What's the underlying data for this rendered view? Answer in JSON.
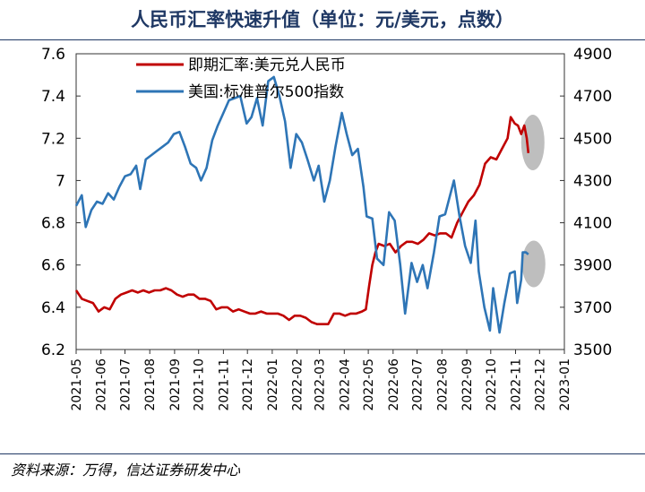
{
  "title": "人民币汇率快速升值（单位：元/美元，点数）",
  "source": "资料来源：万得，信达证券研发中心",
  "chart_data": {
    "type": "line",
    "title": "人民币汇率快速升值（单位：元/美元，点数）",
    "x_ticks": [
      "2021-05",
      "2021-06",
      "2021-07",
      "2021-08",
      "2021-09",
      "2021-10",
      "2021-11",
      "2021-12",
      "2022-01",
      "2022-02",
      "2022-03",
      "2022-04",
      "2022-05",
      "2022-06",
      "2022-07",
      "2022-08",
      "2022-09",
      "2022-10",
      "2022-11",
      "2022-12",
      "2023-01"
    ],
    "xlim": [
      "2021-05-01",
      "2023-01-01"
    ],
    "y_left": {
      "ylim": [
        6.2,
        7.6
      ],
      "ticks": [
        "6.2",
        "6.4",
        "6.6",
        "6.8",
        "7",
        "7.2",
        "7.4",
        "7.6"
      ]
    },
    "y_right": {
      "ylim": [
        3500,
        4900
      ],
      "ticks": [
        "3500",
        "3700",
        "3900",
        "4100",
        "4300",
        "4500",
        "4700",
        "4900"
      ]
    },
    "legend_position": "top",
    "grid": false,
    "annotations": [
      "grey ellipse highlighting recent USD/CNY decline",
      "grey ellipse highlighting recent S&P 500 rebound"
    ],
    "series": [
      {
        "name": "即期汇率:美元兑人民币",
        "axis": "left",
        "color": "#c00000",
        "points": [
          [
            "2021-05-01",
            6.48
          ],
          [
            "2021-05-08",
            6.44
          ],
          [
            "2021-05-15",
            6.43
          ],
          [
            "2021-05-22",
            6.42
          ],
          [
            "2021-05-29",
            6.38
          ],
          [
            "2021-06-05",
            6.4
          ],
          [
            "2021-06-12",
            6.39
          ],
          [
            "2021-06-19",
            6.44
          ],
          [
            "2021-06-26",
            6.46
          ],
          [
            "2021-07-03",
            6.47
          ],
          [
            "2021-07-10",
            6.48
          ],
          [
            "2021-07-17",
            6.47
          ],
          [
            "2021-07-24",
            6.48
          ],
          [
            "2021-07-31",
            6.47
          ],
          [
            "2021-08-07",
            6.48
          ],
          [
            "2021-08-14",
            6.48
          ],
          [
            "2021-08-21",
            6.49
          ],
          [
            "2021-08-28",
            6.48
          ],
          [
            "2021-09-04",
            6.46
          ],
          [
            "2021-09-11",
            6.45
          ],
          [
            "2021-09-18",
            6.46
          ],
          [
            "2021-09-25",
            6.46
          ],
          [
            "2021-10-02",
            6.44
          ],
          [
            "2021-10-09",
            6.44
          ],
          [
            "2021-10-16",
            6.43
          ],
          [
            "2021-10-23",
            6.39
          ],
          [
            "2021-10-30",
            6.4
          ],
          [
            "2021-11-06",
            6.4
          ],
          [
            "2021-11-13",
            6.38
          ],
          [
            "2021-11-20",
            6.39
          ],
          [
            "2021-11-27",
            6.38
          ],
          [
            "2021-12-04",
            6.37
          ],
          [
            "2021-12-11",
            6.37
          ],
          [
            "2021-12-18",
            6.38
          ],
          [
            "2021-12-25",
            6.37
          ],
          [
            "2022-01-01",
            6.37
          ],
          [
            "2022-01-08",
            6.37
          ],
          [
            "2022-01-15",
            6.36
          ],
          [
            "2022-01-22",
            6.34
          ],
          [
            "2022-01-29",
            6.36
          ],
          [
            "2022-02-05",
            6.36
          ],
          [
            "2022-02-12",
            6.35
          ],
          [
            "2022-02-19",
            6.33
          ],
          [
            "2022-02-26",
            6.32
          ],
          [
            "2022-03-05",
            6.32
          ],
          [
            "2022-03-12",
            6.32
          ],
          [
            "2022-03-19",
            6.37
          ],
          [
            "2022-03-26",
            6.37
          ],
          [
            "2022-04-02",
            6.36
          ],
          [
            "2022-04-09",
            6.37
          ],
          [
            "2022-04-16",
            6.37
          ],
          [
            "2022-04-23",
            6.38
          ],
          [
            "2022-04-28",
            6.39
          ],
          [
            "2022-05-02",
            6.5
          ],
          [
            "2022-05-06",
            6.6
          ],
          [
            "2022-05-10",
            6.66
          ],
          [
            "2022-05-14",
            6.7
          ],
          [
            "2022-05-21",
            6.69
          ],
          [
            "2022-05-28",
            6.7
          ],
          [
            "2022-06-04",
            6.66
          ],
          [
            "2022-06-11",
            6.69
          ],
          [
            "2022-06-18",
            6.71
          ],
          [
            "2022-06-25",
            6.71
          ],
          [
            "2022-07-02",
            6.7
          ],
          [
            "2022-07-09",
            6.72
          ],
          [
            "2022-07-16",
            6.75
          ],
          [
            "2022-07-23",
            6.74
          ],
          [
            "2022-07-30",
            6.75
          ],
          [
            "2022-08-06",
            6.75
          ],
          [
            "2022-08-13",
            6.73
          ],
          [
            "2022-08-20",
            6.8
          ],
          [
            "2022-08-27",
            6.85
          ],
          [
            "2022-09-03",
            6.9
          ],
          [
            "2022-09-10",
            6.93
          ],
          [
            "2022-09-17",
            6.98
          ],
          [
            "2022-09-24",
            7.08
          ],
          [
            "2022-10-01",
            7.11
          ],
          [
            "2022-10-08",
            7.1
          ],
          [
            "2022-10-15",
            7.15
          ],
          [
            "2022-10-22",
            7.2
          ],
          [
            "2022-10-26",
            7.3
          ],
          [
            "2022-10-31",
            7.27
          ],
          [
            "2022-11-04",
            7.26
          ],
          [
            "2022-11-08",
            7.22
          ],
          [
            "2022-11-12",
            7.26
          ],
          [
            "2022-11-15",
            7.2
          ],
          [
            "2022-11-17",
            7.13
          ]
        ]
      },
      {
        "name": "美国:标准普尔500指数",
        "axis": "right",
        "color": "#2e75b6",
        "points": [
          [
            "2021-05-01",
            4180
          ],
          [
            "2021-05-08",
            4230
          ],
          [
            "2021-05-13",
            4080
          ],
          [
            "2021-05-20",
            4160
          ],
          [
            "2021-05-27",
            4200
          ],
          [
            "2021-06-03",
            4190
          ],
          [
            "2021-06-10",
            4240
          ],
          [
            "2021-06-17",
            4210
          ],
          [
            "2021-06-24",
            4270
          ],
          [
            "2021-07-01",
            4320
          ],
          [
            "2021-07-08",
            4330
          ],
          [
            "2021-07-15",
            4370
          ],
          [
            "2021-07-20",
            4260
          ],
          [
            "2021-07-27",
            4400
          ],
          [
            "2021-08-03",
            4420
          ],
          [
            "2021-08-10",
            4440
          ],
          [
            "2021-08-17",
            4460
          ],
          [
            "2021-08-24",
            4480
          ],
          [
            "2021-08-31",
            4520
          ],
          [
            "2021-09-07",
            4530
          ],
          [
            "2021-09-14",
            4460
          ],
          [
            "2021-09-21",
            4380
          ],
          [
            "2021-09-28",
            4360
          ],
          [
            "2021-10-04",
            4300
          ],
          [
            "2021-10-11",
            4360
          ],
          [
            "2021-10-18",
            4490
          ],
          [
            "2021-10-25",
            4560
          ],
          [
            "2021-11-01",
            4620
          ],
          [
            "2021-11-08",
            4680
          ],
          [
            "2021-11-15",
            4690
          ],
          [
            "2021-11-22",
            4700
          ],
          [
            "2021-11-30",
            4570
          ],
          [
            "2021-12-06",
            4600
          ],
          [
            "2021-12-13",
            4690
          ],
          [
            "2021-12-20",
            4560
          ],
          [
            "2021-12-27",
            4770
          ],
          [
            "2022-01-03",
            4790
          ],
          [
            "2022-01-10",
            4700
          ],
          [
            "2022-01-17",
            4580
          ],
          [
            "2022-01-24",
            4360
          ],
          [
            "2022-01-31",
            4520
          ],
          [
            "2022-02-07",
            4480
          ],
          [
            "2022-02-14",
            4400
          ],
          [
            "2022-02-22",
            4300
          ],
          [
            "2022-02-28",
            4370
          ],
          [
            "2022-03-07",
            4200
          ],
          [
            "2022-03-14",
            4300
          ],
          [
            "2022-03-21",
            4460
          ],
          [
            "2022-03-29",
            4620
          ],
          [
            "2022-04-04",
            4520
          ],
          [
            "2022-04-11",
            4420
          ],
          [
            "2022-04-18",
            4450
          ],
          [
            "2022-04-25",
            4270
          ],
          [
            "2022-04-29",
            4130
          ],
          [
            "2022-05-06",
            4120
          ],
          [
            "2022-05-12",
            3930
          ],
          [
            "2022-05-20",
            3900
          ],
          [
            "2022-05-27",
            4150
          ],
          [
            "2022-06-03",
            4110
          ],
          [
            "2022-06-10",
            3900
          ],
          [
            "2022-06-16",
            3670
          ],
          [
            "2022-06-24",
            3910
          ],
          [
            "2022-07-01",
            3820
          ],
          [
            "2022-07-08",
            3900
          ],
          [
            "2022-07-14",
            3790
          ],
          [
            "2022-07-22",
            3960
          ],
          [
            "2022-07-29",
            4130
          ],
          [
            "2022-08-05",
            4140
          ],
          [
            "2022-08-16",
            4300
          ],
          [
            "2022-08-23",
            4130
          ],
          [
            "2022-08-30",
            3990
          ],
          [
            "2022-09-06",
            3910
          ],
          [
            "2022-09-12",
            4110
          ],
          [
            "2022-09-16",
            3870
          ],
          [
            "2022-09-23",
            3700
          ],
          [
            "2022-09-30",
            3590
          ],
          [
            "2022-10-04",
            3790
          ],
          [
            "2022-10-12",
            3580
          ],
          [
            "2022-10-18",
            3720
          ],
          [
            "2022-10-25",
            3860
          ],
          [
            "2022-10-31",
            3870
          ],
          [
            "2022-11-03",
            3720
          ],
          [
            "2022-11-08",
            3830
          ],
          [
            "2022-11-10",
            3960
          ],
          [
            "2022-11-14",
            3960
          ],
          [
            "2022-11-17",
            3950
          ]
        ]
      }
    ]
  }
}
